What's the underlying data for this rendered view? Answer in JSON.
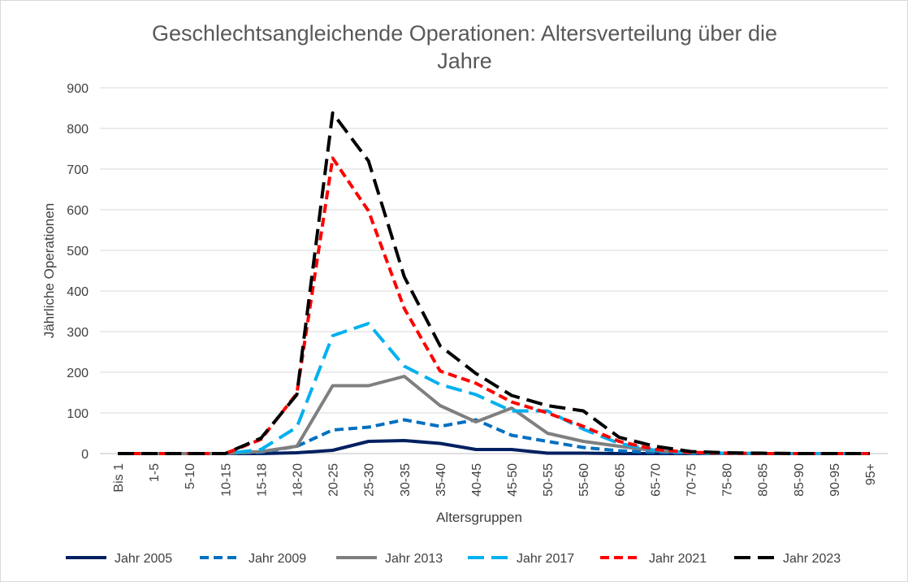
{
  "chart_data": {
    "type": "line",
    "title": "Geschlechtsangleichende Operationen: Altersverteilung über die Jahre",
    "title_lines": [
      "Geschlechtsangleichende Operationen: Altersverteilung über die",
      "Jahre"
    ],
    "xlabel": "Altersgruppen",
    "ylabel": "Jährliche Operationen",
    "ylim": [
      0,
      900
    ],
    "yticks": [
      "0",
      "100",
      "200",
      "300",
      "400",
      "500",
      "600",
      "700",
      "800",
      "900"
    ],
    "grid": true,
    "legend_position": "bottom",
    "categories": [
      "Bis 1",
      "1-5",
      "5-10",
      "10-15",
      "15-18",
      "18-20",
      "20-25",
      "25-30",
      "30-35",
      "35-40",
      "40-45",
      "45-50",
      "50-55",
      "55-60",
      "60-65",
      "65-70",
      "70-75",
      "75-80",
      "80-85",
      "85-90",
      "90-95",
      "95+"
    ],
    "series": [
      {
        "name": "Jahr 2005",
        "color": "#002060",
        "dash": "solid",
        "values": [
          0,
          0,
          0,
          0,
          0,
          2,
          8,
          30,
          32,
          25,
          10,
          10,
          1,
          1,
          0,
          0,
          0,
          0,
          0,
          0,
          0,
          0
        ]
      },
      {
        "name": "Jahr 2009",
        "color": "#0070c0",
        "dash": "short-dash",
        "values": [
          0,
          0,
          0,
          0,
          3,
          18,
          58,
          65,
          83,
          67,
          83,
          45,
          30,
          15,
          7,
          3,
          1,
          0,
          0,
          0,
          0,
          0
        ]
      },
      {
        "name": "Jahr 2013",
        "color": "#7f7f7f",
        "dash": "solid",
        "values": [
          0,
          0,
          0,
          0,
          5,
          18,
          167,
          167,
          190,
          118,
          78,
          112,
          50,
          30,
          18,
          7,
          2,
          0,
          0,
          0,
          0,
          0
        ]
      },
      {
        "name": "Jahr 2017",
        "color": "#00b0f0",
        "dash": "long-dash",
        "values": [
          0,
          0,
          0,
          0,
          10,
          65,
          290,
          320,
          215,
          170,
          145,
          105,
          105,
          60,
          25,
          8,
          2,
          1,
          0,
          0,
          0,
          0
        ]
      },
      {
        "name": "Jahr 2021",
        "color": "#ff0000",
        "dash": "short-dash",
        "values": [
          0,
          0,
          0,
          0,
          35,
          148,
          727,
          597,
          357,
          203,
          173,
          127,
          100,
          67,
          30,
          10,
          3,
          1,
          0,
          0,
          0,
          0
        ]
      },
      {
        "name": "Jahr 2023",
        "color": "#000000",
        "dash": "long-dash",
        "values": [
          0,
          0,
          0,
          0,
          38,
          145,
          838,
          720,
          435,
          265,
          197,
          143,
          118,
          105,
          40,
          18,
          5,
          2,
          1,
          0,
          0,
          0
        ]
      }
    ]
  }
}
